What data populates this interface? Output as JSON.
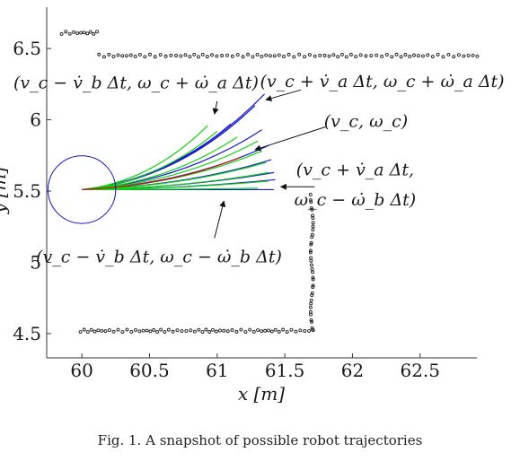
{
  "chart_data": {
    "type": "line",
    "title": "",
    "xlabel": "x [m]",
    "ylabel": "y [m]",
    "xlim": [
      59.74,
      62.92
    ],
    "ylim": [
      4.33,
      6.79
    ],
    "xticks": [
      60,
      60.5,
      61,
      61.5,
      62,
      62.5
    ],
    "yticks": [
      4.5,
      5,
      5.5,
      6,
      6.5
    ],
    "xtick_labels": [
      "60",
      "60.5",
      "61",
      "61.5",
      "62",
      "62.5"
    ],
    "ytick_labels": [
      "4.5",
      "5",
      "5.5",
      "6",
      "6.5"
    ],
    "grid": false,
    "robot": {
      "center": [
        60,
        5.51
      ],
      "radius": 0.25,
      "color": "#1010c8"
    },
    "colors": {
      "obstacle": "#222222",
      "blue": "#1a1acc",
      "green": "#12d012",
      "red": "#cc1010"
    },
    "trajectories": [
      {
        "color": "blue",
        "end": [
          61.35,
          6.18
        ]
      },
      {
        "color": "blue",
        "end": [
          61.28,
          6.1
        ]
      },
      {
        "color": "blue",
        "end": [
          61.2,
          6.03
        ]
      },
      {
        "color": "blue",
        "end": [
          61.1,
          5.97
        ]
      },
      {
        "color": "blue",
        "end": [
          61.33,
          5.93
        ]
      },
      {
        "color": "blue",
        "end": [
          61.38,
          5.82
        ]
      },
      {
        "color": "blue",
        "end": [
          61.4,
          5.72
        ]
      },
      {
        "color": "blue",
        "end": [
          61.42,
          5.63
        ]
      },
      {
        "color": "blue",
        "end": [
          61.43,
          5.58
        ]
      },
      {
        "color": "blue",
        "end": [
          61.42,
          5.51
        ]
      },
      {
        "color": "green",
        "end": [
          60.93,
          5.96
        ]
      },
      {
        "color": "green",
        "end": [
          61.0,
          5.92
        ]
      },
      {
        "color": "green",
        "end": [
          61.15,
          5.88
        ]
      },
      {
        "color": "green",
        "end": [
          61.3,
          5.85
        ]
      },
      {
        "color": "green",
        "end": [
          61.33,
          5.78
        ]
      },
      {
        "color": "green",
        "end": [
          61.36,
          5.7
        ]
      },
      {
        "color": "green",
        "end": [
          61.38,
          5.63
        ]
      },
      {
        "color": "green",
        "end": [
          61.38,
          5.57
        ]
      },
      {
        "color": "green",
        "end": [
          61.3,
          5.52
        ]
      },
      {
        "color": "red",
        "end": [
          61.18,
          5.74
        ]
      }
    ],
    "obstacles": [
      {
        "x_from": 59.85,
        "x_to": 60.12,
        "y": 6.61,
        "n": 11
      },
      {
        "x_from": 60.12,
        "x_to": 62.92,
        "y": 6.45,
        "n": 80
      },
      {
        "x_from": 59.98,
        "x_to": 61.7,
        "y": 4.52,
        "n": 60
      },
      {
        "x_from": 61.7,
        "x_to": 61.7,
        "y_from": 4.52,
        "y_to": 5.47,
        "n": 36
      }
    ],
    "annotations": [
      {
        "label": "(v_c − v̇_b Δt, ω_c + ω̇_a Δt)",
        "text_at": [
          60.4,
          6.22
        ],
        "arrow_from": [
          61.0,
          6.13
        ],
        "arrow_to": [
          60.98,
          6.04
        ]
      },
      {
        "label": "(v_c + v̇_a Δt, ω_c + ω̇_a Δt)",
        "text_at": [
          62.22,
          6.23
        ],
        "arrow_from": [
          61.62,
          6.21
        ],
        "arrow_to": [
          61.36,
          6.14
        ]
      },
      {
        "label": "(v_c, ω_c)",
        "text_at": [
          62.1,
          5.95
        ],
        "arrow_from": [
          61.8,
          5.95
        ],
        "arrow_to": [
          61.28,
          5.79
        ]
      },
      {
        "label": "(v_c + v̇_a Δt,",
        "text_at": [
          62.02,
          5.61
        ],
        "arrow_from": [
          61.72,
          5.53
        ],
        "arrow_to": [
          61.47,
          5.53
        ]
      },
      {
        "label": "ω_c − ω̇_b Δt)",
        "text_at": [
          62.02,
          5.4
        ]
      },
      {
        "label": "(v_c − v̇_b Δt, ω_c − ω̇_b Δt)",
        "text_at": [
          60.57,
          5.0
        ],
        "arrow_from": [
          60.98,
          5.17
        ],
        "arrow_to": [
          61.05,
          5.43
        ]
      }
    ],
    "caption": "Fig. 1.    A snapshot of possible robot trajectories"
  }
}
